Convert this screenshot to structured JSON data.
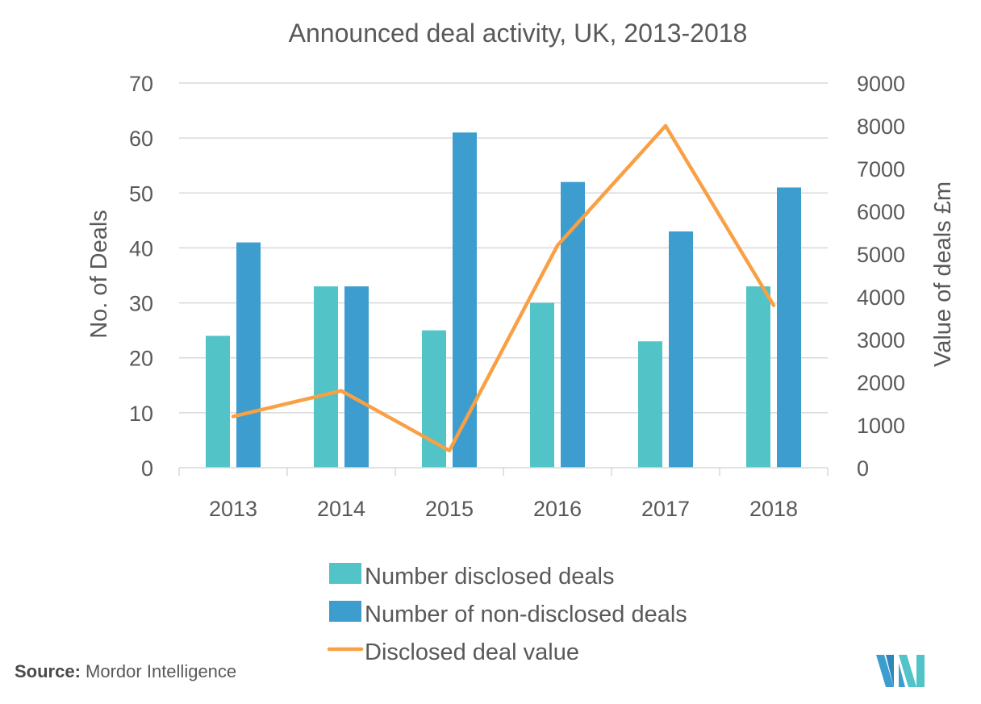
{
  "chart_data": {
    "type": "bar",
    "title": "Announced deal activity, UK, 2013-2018",
    "categories": [
      "2013",
      "2014",
      "2015",
      "2016",
      "2017",
      "2018"
    ],
    "ylabel": "No. of Deals",
    "y2label": "Value of deals £m",
    "ylim": [
      0,
      70
    ],
    "yticks": [
      0,
      10,
      20,
      30,
      40,
      50,
      60,
      70
    ],
    "y2lim": [
      0,
      9000
    ],
    "y2ticks": [
      0,
      1000,
      2000,
      3000,
      4000,
      5000,
      6000,
      7000,
      8000,
      9000
    ],
    "grid": true,
    "legend_position": "bottom",
    "series": [
      {
        "name": "Number disclosed deals",
        "type": "bar",
        "axis": "left",
        "color": "#52c3c6",
        "values": [
          24,
          33,
          25,
          30,
          23,
          33
        ]
      },
      {
        "name": "Number of non-disclosed deals",
        "type": "bar",
        "axis": "left",
        "color": "#3d9dce",
        "values": [
          41,
          33,
          61,
          52,
          43,
          51
        ]
      },
      {
        "name": "Disclosed deal value",
        "type": "line",
        "axis": "right",
        "color": "#f9a045",
        "values": [
          1200,
          1800,
          400,
          5200,
          8000,
          3800
        ]
      }
    ]
  },
  "footer": {
    "source_label": "Source:",
    "source_name": "Mordor Intelligence"
  },
  "logo": {
    "icon": "mordor-intelligence-logo"
  }
}
